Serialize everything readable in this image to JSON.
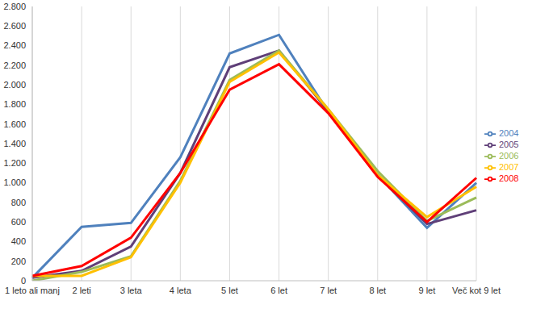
{
  "chart_data": {
    "type": "line",
    "categories": [
      "1 leto ali manj",
      "2 leti",
      "3 leta",
      "4 leta",
      "5 let",
      "6 let",
      "7 let",
      "8 let",
      "9 let",
      "Več kot 9 let"
    ],
    "series": [
      {
        "name": "2004",
        "color": "#4f81bd",
        "values": [
          30,
          550,
          590,
          1260,
          2320,
          2510,
          1720,
          1080,
          540,
          1000
        ]
      },
      {
        "name": "2005",
        "color": "#5f3f78",
        "values": [
          30,
          100,
          350,
          1100,
          2180,
          2350,
          1730,
          1080,
          580,
          720
        ]
      },
      {
        "name": "2006",
        "color": "#9bbb59",
        "values": [
          0,
          90,
          250,
          1020,
          2050,
          2350,
          1750,
          1120,
          610,
          850
        ]
      },
      {
        "name": "2007",
        "color": "#ffc000",
        "values": [
          50,
          50,
          240,
          1000,
          2030,
          2330,
          1750,
          1080,
          650,
          960
        ]
      },
      {
        "name": "2008",
        "color": "#ff0000",
        "values": [
          50,
          150,
          440,
          1100,
          1950,
          2210,
          1710,
          1060,
          600,
          1050
        ]
      }
    ],
    "ylim": [
      0,
      2800
    ],
    "yticks": [
      0,
      200,
      400,
      600,
      800,
      {
        "value": 1000,
        "label": "1.000"
      },
      {
        "value": 1200,
        "label": "1.200"
      },
      {
        "value": 1400,
        "label": "1.400"
      },
      {
        "value": 1600,
        "label": "1.600"
      },
      {
        "value": 1800,
        "label": "1.800"
      },
      {
        "value": 2000,
        "label": "2.000"
      },
      {
        "value": 2200,
        "label": "2.200"
      },
      {
        "value": 2400,
        "label": "2.400"
      },
      {
        "value": 2600,
        "label": "2.600"
      },
      {
        "value": 2800,
        "label": "2.800"
      }
    ],
    "grid": true,
    "legend": "right"
  }
}
